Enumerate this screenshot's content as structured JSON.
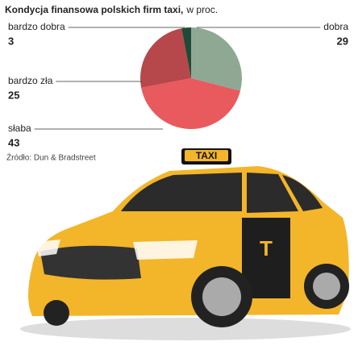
{
  "chart_data": {
    "type": "pie",
    "title": "Kondycja finansowa polskich firm taxi,",
    "subtitle": "w proc.",
    "categories": [
      "dobra",
      "słaba",
      "bardzo zła",
      "bardzo dobra"
    ],
    "values": [
      29,
      43,
      25,
      3
    ],
    "colors": [
      "#8fa894",
      "#e85a5e",
      "#b6474b",
      "#1f4a37"
    ],
    "source": "Źródło: Dun & Bradstreet",
    "sign": "TAXI"
  }
}
